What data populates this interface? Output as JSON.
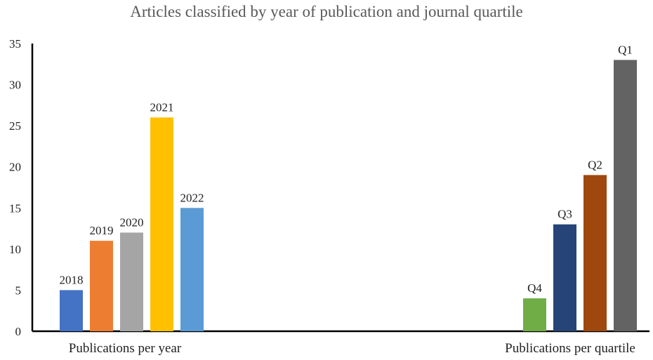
{
  "chart_data": {
    "type": "bar",
    "title": "Articles classified by year of publication and journal quartile",
    "ylim": [
      0,
      35
    ],
    "yticks": [
      0,
      5,
      10,
      15,
      20,
      25,
      30,
      35
    ],
    "grid": false,
    "legend": "none",
    "groups": [
      {
        "label": "Publications per year",
        "bars": [
          {
            "label": "2018",
            "value": 5,
            "color": "#4472C4"
          },
          {
            "label": "2019",
            "value": 11,
            "color": "#ED7D31"
          },
          {
            "label": "2020",
            "value": 12,
            "color": "#A5A5A5"
          },
          {
            "label": "2021",
            "value": 26,
            "color": "#FFC000"
          },
          {
            "label": "2022",
            "value": 15,
            "color": "#5B9BD5"
          }
        ]
      },
      {
        "label": "Publications per quartile",
        "bars": [
          {
            "label": "Q4",
            "value": 4,
            "color": "#70AD47"
          },
          {
            "label": "Q3",
            "value": 13,
            "color": "#264478"
          },
          {
            "label": "Q2",
            "value": 19,
            "color": "#9E480E"
          },
          {
            "label": "Q1",
            "value": 33,
            "color": "#636363"
          }
        ]
      }
    ]
  }
}
